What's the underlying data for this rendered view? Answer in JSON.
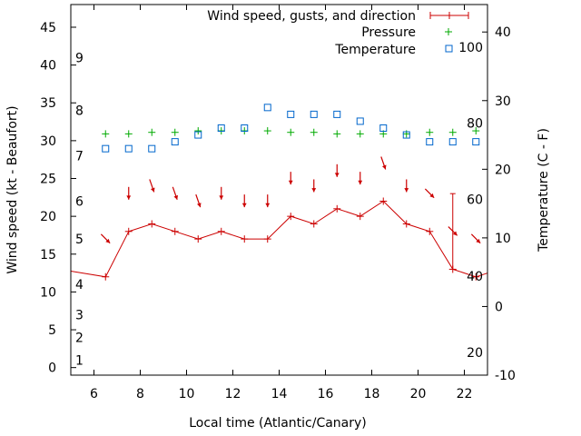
{
  "chart_data": {
    "type": "line",
    "x_range": [
      5,
      23
    ],
    "x_ticks": [
      6,
      8,
      10,
      12,
      14,
      16,
      18,
      20,
      22
    ],
    "xlabel": "Local time (Atlantic/Canary)",
    "ylabel_left": "Wind speed (kt - Beaufort)",
    "ylim_left": [
      -1,
      48
    ],
    "y_ticks_left": [
      0,
      5,
      10,
      15,
      20,
      25,
      30,
      35,
      40,
      45
    ],
    "ylabel_right": "Temperature (C - F)",
    "ylim_right": [
      -10,
      44
    ],
    "y_ticks_right": [
      -10,
      0,
      10,
      20,
      30,
      40
    ],
    "beaufort_labels": [
      {
        "label": "1",
        "kt": 1
      },
      {
        "label": "2",
        "kt": 4
      },
      {
        "label": "3",
        "kt": 7
      },
      {
        "label": "4",
        "kt": 11
      },
      {
        "label": "5",
        "kt": 17
      },
      {
        "label": "6",
        "kt": 22
      },
      {
        "label": "7",
        "kt": 28
      },
      {
        "label": "8",
        "kt": 34
      },
      {
        "label": "9",
        "kt": 41
      }
    ],
    "fahrenheit_labels": [
      {
        "label": "20",
        "c": -6.7
      },
      {
        "label": "40",
        "c": 4.4
      },
      {
        "label": "60",
        "c": 15.6
      },
      {
        "label": "80",
        "c": 26.7
      },
      {
        "label": "100",
        "c": 37.8
      }
    ],
    "legend_position": "top-right",
    "series": [
      {
        "name": "Wind speed, gusts, and direction",
        "color": "#cc0000",
        "x": [
          4.5,
          6.5,
          7.5,
          8.5,
          9.5,
          10.5,
          11.5,
          12.5,
          13.5,
          14.5,
          15.5,
          16.5,
          17.5,
          18.5,
          19.5,
          20.5,
          21.5,
          22.5,
          23.5
        ],
        "values": [
          13,
          12,
          18,
          19,
          18,
          17,
          18,
          17,
          17,
          20,
          19,
          21,
          20,
          22,
          19,
          18,
          13,
          12,
          13
        ],
        "gusts": [
          {
            "x": 21.5,
            "value": 23
          }
        ],
        "direction_arrows": [
          {
            "x": 6.5,
            "dir": "ne"
          },
          {
            "x": 7.5,
            "dir": "n"
          },
          {
            "x": 8.5,
            "dir": "nne"
          },
          {
            "x": 9.5,
            "dir": "nne"
          },
          {
            "x": 10.5,
            "dir": "nne"
          },
          {
            "x": 11.5,
            "dir": "n"
          },
          {
            "x": 12.5,
            "dir": "n"
          },
          {
            "x": 13.5,
            "dir": "n"
          },
          {
            "x": 14.5,
            "dir": "n"
          },
          {
            "x": 15.5,
            "dir": "n"
          },
          {
            "x": 16.5,
            "dir": "n"
          },
          {
            "x": 17.5,
            "dir": "n"
          },
          {
            "x": 18.5,
            "dir": "nne"
          },
          {
            "x": 19.5,
            "dir": "n"
          },
          {
            "x": 20.5,
            "dir": "ne"
          },
          {
            "x": 21.5,
            "dir": "ne"
          },
          {
            "x": 22.5,
            "dir": "ne"
          }
        ]
      },
      {
        "name": "Pressure",
        "color": "#00aa00",
        "marker": "plus",
        "x": [
          6.5,
          7.5,
          8.5,
          9.5,
          10.5,
          11.5,
          12.5,
          13.5,
          14.5,
          15.5,
          16.5,
          17.5,
          18.5,
          19.5,
          20.5,
          21.5,
          22.5
        ],
        "values": [
          30.9,
          30.9,
          31.1,
          31.1,
          31.3,
          31.3,
          31.3,
          31.3,
          31.1,
          31.1,
          30.9,
          30.9,
          30.9,
          30.9,
          31.1,
          31.1,
          31.3
        ]
      },
      {
        "name": "Temperature",
        "color": "#0066cc",
        "marker": "square",
        "axis": "right",
        "x": [
          6.5,
          7.5,
          8.5,
          9.5,
          10.5,
          11.5,
          12.5,
          13.5,
          14.5,
          15.5,
          16.5,
          17.5,
          18.5,
          19.5,
          20.5,
          21.5,
          22.5
        ],
        "values": [
          23,
          23,
          23,
          24,
          25,
          26,
          26,
          29,
          28,
          28,
          28,
          27,
          26,
          25,
          24,
          24,
          24
        ]
      }
    ]
  }
}
